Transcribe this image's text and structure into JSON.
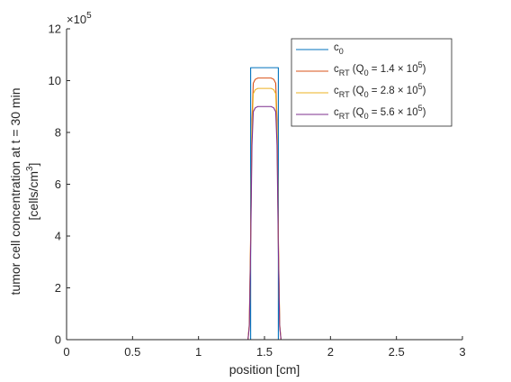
{
  "chart_data": {
    "type": "line",
    "xlabel": "position [cm]",
    "ylabel_lines": [
      "tumor cell concentration at t = 30 min",
      "[cells/cm",
      "3",
      "]"
    ],
    "xlim": [
      0,
      3
    ],
    "ylim": [
      0,
      1200000
    ],
    "y_exponent_label": "×10",
    "y_exponent": "5",
    "x_ticks": [
      {
        "value": 0,
        "label": "0"
      },
      {
        "value": 0.5,
        "label": "0.5"
      },
      {
        "value": 1,
        "label": "1"
      },
      {
        "value": 1.5,
        "label": "1.5"
      },
      {
        "value": 2,
        "label": "2"
      },
      {
        "value": 2.5,
        "label": "2.5"
      },
      {
        "value": 3,
        "label": "3"
      }
    ],
    "y_ticks": [
      {
        "value": 0,
        "label": "0"
      },
      {
        "value": 200000,
        "label": "2"
      },
      {
        "value": 400000,
        "label": "4"
      },
      {
        "value": 600000,
        "label": "6"
      },
      {
        "value": 800000,
        "label": "8"
      },
      {
        "value": 1000000,
        "label": "10"
      },
      {
        "value": 1200000,
        "label": "12"
      }
    ],
    "legend_position": "top-right",
    "series": [
      {
        "legend": {
          "base": "c",
          "sub": "0",
          "rest": ""
        },
        "color": "#0072BD",
        "x": [
          0,
          1.395,
          1.395,
          1.41,
          1.605,
          1.605,
          3
        ],
        "y": [
          0,
          0,
          1050000,
          1050000,
          1050000,
          0,
          0
        ]
      },
      {
        "legend": {
          "base": "c",
          "sub": "RT",
          "rest": " (Q",
          "sub2": "0",
          "rest2": " = 1.4 × 10",
          "sup": "5",
          "rest3": ")"
        },
        "color": "#D95319",
        "x": [
          0,
          1.375,
          1.385,
          1.395,
          1.405,
          1.415,
          1.43,
          1.45,
          1.55,
          1.57,
          1.585,
          1.595,
          1.605,
          1.615,
          1.625,
          3
        ],
        "y": [
          0,
          0,
          60000,
          400000,
          850000,
          990000,
          1005000,
          1010000,
          1010000,
          1005000,
          990000,
          850000,
          400000,
          60000,
          0,
          0
        ]
      },
      {
        "legend": {
          "base": "c",
          "sub": "RT",
          "rest": " (Q",
          "sub2": "0",
          "rest2": " = 2.8 × 10",
          "sup": "5",
          "rest3": ")"
        },
        "color": "#EDB120",
        "x": [
          0,
          1.375,
          1.385,
          1.395,
          1.405,
          1.415,
          1.43,
          1.45,
          1.55,
          1.57,
          1.585,
          1.595,
          1.605,
          1.615,
          1.625,
          3
        ],
        "y": [
          0,
          0,
          55000,
          380000,
          810000,
          950000,
          965000,
          970000,
          970000,
          965000,
          950000,
          810000,
          380000,
          55000,
          0,
          0
        ]
      },
      {
        "legend": {
          "base": "c",
          "sub": "RT",
          "rest": " (Q",
          "sub2": "0",
          "rest2": " = 5.6 × 10",
          "sup": "5",
          "rest3": ")"
        },
        "color": "#7E2F8E",
        "x": [
          0,
          1.375,
          1.385,
          1.395,
          1.405,
          1.415,
          1.43,
          1.45,
          1.55,
          1.57,
          1.585,
          1.595,
          1.605,
          1.615,
          1.625,
          3
        ],
        "y": [
          0,
          0,
          50000,
          350000,
          750000,
          880000,
          895000,
          900000,
          900000,
          895000,
          880000,
          750000,
          350000,
          50000,
          0,
          0
        ]
      }
    ]
  }
}
